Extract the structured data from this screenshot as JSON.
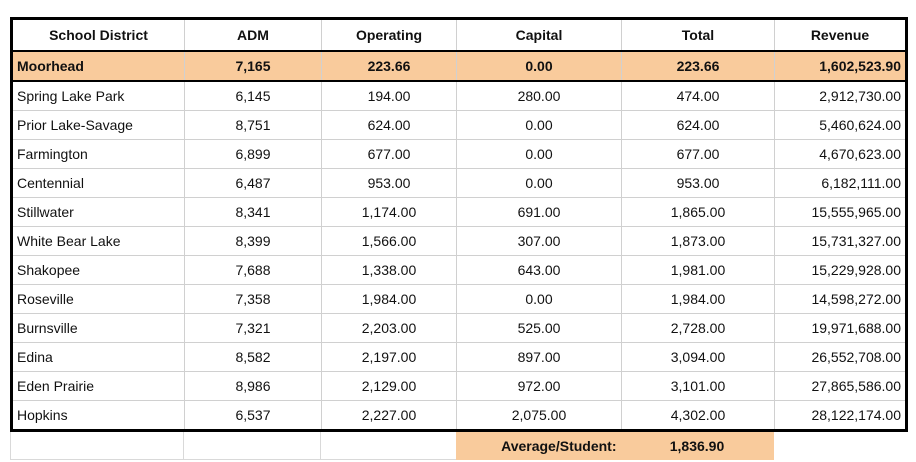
{
  "table": {
    "columns": [
      {
        "key": "district",
        "label": "School District"
      },
      {
        "key": "adm",
        "label": "ADM"
      },
      {
        "key": "operating",
        "label": "Operating"
      },
      {
        "key": "capital",
        "label": "Capital"
      },
      {
        "key": "total",
        "label": "Total"
      },
      {
        "key": "revenue",
        "label": "Revenue"
      }
    ],
    "highlight_row": {
      "district": "Moorhead",
      "adm": "7,165",
      "operating": "223.66",
      "capital": "0.00",
      "total": "223.66",
      "revenue": "1,602,523.90"
    },
    "rows": [
      {
        "district": "Spring Lake Park",
        "adm": "6,145",
        "operating": "194.00",
        "capital": "280.00",
        "total": "474.00",
        "revenue": "2,912,730.00"
      },
      {
        "district": "Prior Lake-Savage",
        "adm": "8,751",
        "operating": "624.00",
        "capital": "0.00",
        "total": "624.00",
        "revenue": "5,460,624.00"
      },
      {
        "district": "Farmington",
        "adm": "6,899",
        "operating": "677.00",
        "capital": "0.00",
        "total": "677.00",
        "revenue": "4,670,623.00"
      },
      {
        "district": "Centennial",
        "adm": "6,487",
        "operating": "953.00",
        "capital": "0.00",
        "total": "953.00",
        "revenue": "6,182,111.00"
      },
      {
        "district": "Stillwater",
        "adm": "8,341",
        "operating": "1,174.00",
        "capital": "691.00",
        "total": "1,865.00",
        "revenue": "15,555,965.00"
      },
      {
        "district": "White Bear Lake",
        "adm": "8,399",
        "operating": "1,566.00",
        "capital": "307.00",
        "total": "1,873.00",
        "revenue": "15,731,327.00"
      },
      {
        "district": "Shakopee",
        "adm": "7,688",
        "operating": "1,338.00",
        "capital": "643.00",
        "total": "1,981.00",
        "revenue": "15,229,928.00"
      },
      {
        "district": "Roseville",
        "adm": "7,358",
        "operating": "1,984.00",
        "capital": "0.00",
        "total": "1,984.00",
        "revenue": "14,598,272.00"
      },
      {
        "district": "Burnsville",
        "adm": "7,321",
        "operating": "2,203.00",
        "capital": "525.00",
        "total": "2,728.00",
        "revenue": "19,971,688.00"
      },
      {
        "district": "Edina",
        "adm": "8,582",
        "operating": "2,197.00",
        "capital": "897.00",
        "total": "3,094.00",
        "revenue": "26,552,708.00"
      },
      {
        "district": "Eden Prairie",
        "adm": "8,986",
        "operating": "2,129.00",
        "capital": "972.00",
        "total": "3,101.00",
        "revenue": "27,865,586.00"
      },
      {
        "district": "Hopkins",
        "adm": "6,537",
        "operating": "2,227.00",
        "capital": "2,075.00",
        "total": "4,302.00",
        "revenue": "28,122,174.00"
      }
    ],
    "footer": {
      "label": "Average/Student:",
      "value": "1,836.90"
    },
    "colors": {
      "highlight": "#f9cb9c",
      "gridline": "#d0d0d0",
      "frame": "#000000"
    }
  },
  "chart_data": {
    "type": "table",
    "title": "",
    "columns": [
      "School District",
      "ADM",
      "Operating",
      "Capital",
      "Total",
      "Revenue"
    ],
    "rows": [
      [
        "Moorhead",
        7165,
        223.66,
        0.0,
        223.66,
        1602523.9
      ],
      [
        "Spring Lake Park",
        6145,
        194.0,
        280.0,
        474.0,
        2912730.0
      ],
      [
        "Prior Lake-Savage",
        8751,
        624.0,
        0.0,
        624.0,
        5460624.0
      ],
      [
        "Farmington",
        6899,
        677.0,
        0.0,
        677.0,
        4670623.0
      ],
      [
        "Centennial",
        6487,
        953.0,
        0.0,
        953.0,
        6182111.0
      ],
      [
        "Stillwater",
        8341,
        1174.0,
        691.0,
        1865.0,
        15555965.0
      ],
      [
        "White Bear Lake",
        8399,
        1566.0,
        307.0,
        1873.0,
        15731327.0
      ],
      [
        "Shakopee",
        7688,
        1338.0,
        643.0,
        1981.0,
        15229928.0
      ],
      [
        "Roseville",
        7358,
        1984.0,
        0.0,
        1984.0,
        14598272.0
      ],
      [
        "Burnsville",
        7321,
        2203.0,
        525.0,
        2728.0,
        19971688.0
      ],
      [
        "Edina",
        8582,
        2197.0,
        897.0,
        3094.0,
        26552708.0
      ],
      [
        "Eden Prairie",
        8986,
        2129.0,
        972.0,
        3101.0,
        27865586.0
      ],
      [
        "Hopkins",
        6537,
        2227.0,
        2075.0,
        4302.0,
        28122174.0
      ]
    ],
    "highlighted_row": "Moorhead",
    "footer": {
      "label": "Average/Student:",
      "value": 1836.9
    },
    "layout": {
      "grid": true,
      "header_bold": true,
      "highlight_color": "#f9cb9c"
    }
  }
}
